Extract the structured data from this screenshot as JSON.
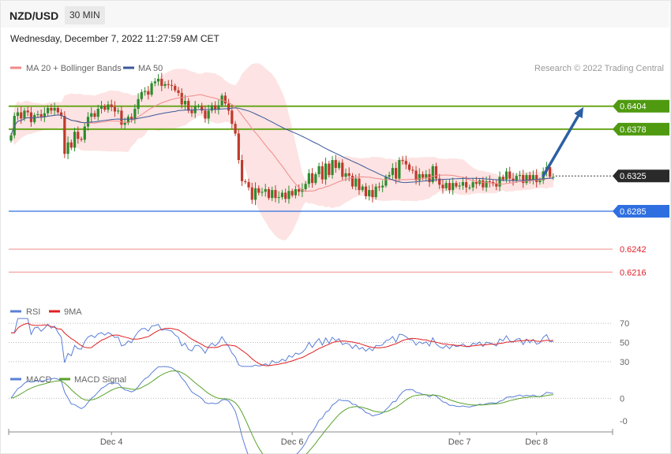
{
  "header": {
    "symbol": "NZD/USD",
    "timeframe": "30 MIN"
  },
  "datetime": "Wednesday, December 7, 2022 11:27:59 AM CET",
  "copyright": "Research © 2022 Trading Central",
  "colors": {
    "ma20": "#f08a8a",
    "ma50": "#3a5a99",
    "band": "#fde3e3",
    "up": "#2c8c2c",
    "down": "#c0392b",
    "resistance": "#6aa61e",
    "pivot": "#2f6fe0",
    "support": "#f3a3a3",
    "rsi": "#5b7fd6",
    "rsi9ma": "#e02020",
    "macd": "#5b7fd6",
    "signal": "#58a22a",
    "arrow": "#2d5fa3"
  },
  "chart_data": [
    {
      "type": "candlestick",
      "legend": [
        {
          "name": "MA 20 + Bollinger Bands",
          "color": "#f08a8a"
        },
        {
          "name": "MA 50",
          "color": "#3a5a99"
        }
      ],
      "x_labels": [
        "Dec 4",
        "Dec 6",
        "Dec 7",
        "Dec 8"
      ],
      "x_label_index": [
        30,
        84,
        134,
        157
      ],
      "ylim": [
        0.6185,
        0.6435
      ],
      "current_price": 0.6325,
      "levels": [
        {
          "label": "0.6404",
          "value": 0.6404,
          "kind": "resistance"
        },
        {
          "label": "0.6378",
          "value": 0.6378,
          "kind": "resistance"
        },
        {
          "label": "0.6325",
          "value": 0.6325,
          "kind": "current"
        },
        {
          "label": "0.6285",
          "value": 0.6285,
          "kind": "pivot"
        },
        {
          "label": "0.6242",
          "value": 0.6242,
          "kind": "support"
        },
        {
          "label": "0.6216",
          "value": 0.6216,
          "kind": "support"
        }
      ],
      "arrow": {
        "from": [
          159,
          0.6325
        ],
        "to": [
          171,
          0.6403
        ]
      },
      "close": [
        0.6371,
        0.6393,
        0.6397,
        0.639,
        0.6399,
        0.6397,
        0.6386,
        0.6394,
        0.6395,
        0.6392,
        0.6396,
        0.6402,
        0.6399,
        0.6402,
        0.6397,
        0.6393,
        0.635,
        0.6363,
        0.6357,
        0.6375,
        0.6367,
        0.6366,
        0.6381,
        0.6392,
        0.6396,
        0.6392,
        0.6401,
        0.6404,
        0.64,
        0.6406,
        0.6403,
        0.6398,
        0.6399,
        0.6383,
        0.6385,
        0.6392,
        0.6389,
        0.6401,
        0.6412,
        0.642,
        0.6421,
        0.6417,
        0.643,
        0.6432,
        0.6435,
        0.6427,
        0.6429,
        0.6428,
        0.6427,
        0.6422,
        0.6419,
        0.6406,
        0.641,
        0.6399,
        0.6396,
        0.6404,
        0.6404,
        0.6399,
        0.639,
        0.6399,
        0.6405,
        0.64,
        0.6405,
        0.6416,
        0.6407,
        0.6399,
        0.6384,
        0.6373,
        0.6343,
        0.6319,
        0.6318,
        0.6312,
        0.6298,
        0.6311,
        0.6306,
        0.6307,
        0.631,
        0.63,
        0.6309,
        0.63,
        0.6301,
        0.6306,
        0.6299,
        0.6308,
        0.6303,
        0.631,
        0.6307,
        0.631,
        0.6316,
        0.6328,
        0.6317,
        0.6327,
        0.6336,
        0.6321,
        0.6339,
        0.6326,
        0.6343,
        0.6334,
        0.634,
        0.6324,
        0.6328,
        0.6325,
        0.6313,
        0.6322,
        0.6309,
        0.6313,
        0.6302,
        0.6309,
        0.6301,
        0.6313,
        0.6312,
        0.6314,
        0.6324,
        0.6326,
        0.6334,
        0.6322,
        0.6343,
        0.6342,
        0.6338,
        0.6332,
        0.6331,
        0.632,
        0.6327,
        0.6323,
        0.6327,
        0.6318,
        0.6336,
        0.6322,
        0.6315,
        0.6311,
        0.6317,
        0.6309,
        0.6317,
        0.6313,
        0.6314,
        0.6318,
        0.6312,
        0.6312,
        0.6318,
        0.6316,
        0.632,
        0.6312,
        0.6319,
        0.6318,
        0.6316,
        0.6313,
        0.6324,
        0.6321,
        0.633,
        0.6322,
        0.632,
        0.6325,
        0.6326,
        0.6317,
        0.6326,
        0.632,
        0.6326,
        0.6318,
        0.632,
        0.633,
        0.6335,
        0.6324,
        0.6324
      ]
    },
    {
      "type": "line",
      "name_labels": [
        "RSI",
        "9MA"
      ],
      "yticks": [
        70,
        50,
        30
      ],
      "ylim": [
        20,
        80
      ]
    },
    {
      "type": "line",
      "name_labels": [
        "MACD",
        "MACD Signal"
      ],
      "yticks": [
        {
          "label": "0",
          "value": 0
        },
        {
          "label": "-0",
          "value": -0.0008
        }
      ],
      "ylim": [
        -0.0012,
        0.0006
      ]
    }
  ]
}
